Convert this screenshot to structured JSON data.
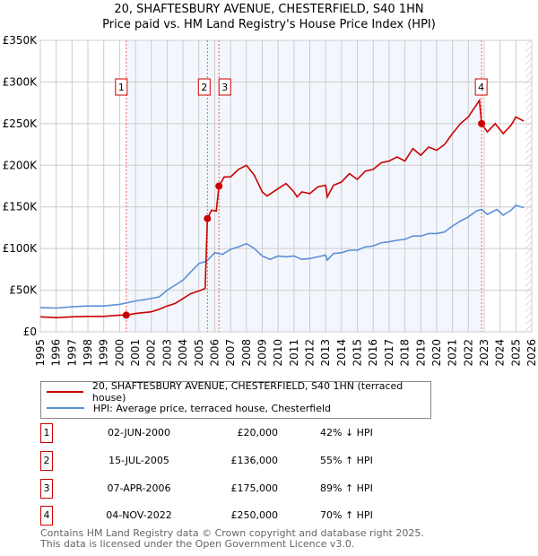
{
  "title": "20, SHAFTESBURY AVENUE, CHESTERFIELD, S40 1HN",
  "subtitle": "Price paid vs. HM Land Registry's House Price Index (HPI)",
  "legend": [
    {
      "label": "20, SHAFTESBURY AVENUE, CHESTERFIELD, S40 1HN (terraced house)",
      "color": "#cc0000"
    },
    {
      "label": "HPI: Average price, terraced house, Chesterfield",
      "color": "#5b8fd6"
    }
  ],
  "transactions": [
    {
      "num": "1",
      "date": "02-JUN-2000",
      "price": "£20,000",
      "hpi": "42% ↓ HPI"
    },
    {
      "num": "2",
      "date": "15-JUL-2005",
      "price": "£136,000",
      "hpi": "55% ↑ HPI"
    },
    {
      "num": "3",
      "date": "07-APR-2006",
      "price": "£175,000",
      "hpi": "89% ↑ HPI"
    },
    {
      "num": "4",
      "date": "04-NOV-2022",
      "price": "£250,000",
      "hpi": "70% ↑ HPI"
    }
  ],
  "footer": [
    "Contains HM Land Registry data © Crown copyright and database right 2025.",
    "This data is licensed under the Open Government Licence v3.0."
  ],
  "chart_data": {
    "type": "line",
    "title": "20, SHAFTESBURY AVENUE, CHESTERFIELD, S40 1HN",
    "subtitle": "Price paid vs. HM Land Registry's House Price Index (HPI)",
    "xlim": [
      1995,
      2026
    ],
    "ylim": [
      0,
      350000
    ],
    "yticks": [
      0,
      50000,
      100000,
      150000,
      200000,
      250000,
      300000,
      350000
    ],
    "ytick_labels": [
      "£0",
      "£50K",
      "£100K",
      "£150K",
      "£200K",
      "£250K",
      "£300K",
      "£350K"
    ],
    "xticks": [
      1995,
      1996,
      1997,
      1998,
      1999,
      2000,
      2001,
      2002,
      2003,
      2004,
      2005,
      2006,
      2007,
      2008,
      2009,
      2010,
      2011,
      2012,
      2013,
      2014,
      2015,
      2016,
      2017,
      2018,
      2019,
      2020,
      2021,
      2022,
      2023,
      2024,
      2025,
      2026
    ],
    "grid": true,
    "shaded_range": [
      2000.42,
      2022.84
    ],
    "forecast_hatch_from": 2025.6,
    "sales": [
      {
        "label": "1",
        "x": 2000.42,
        "y": 20000
      },
      {
        "label": "2",
        "x": 2005.54,
        "y": 136000
      },
      {
        "label": "3",
        "x": 2006.27,
        "y": 175000
      },
      {
        "label": "4",
        "x": 2022.84,
        "y": 250000
      }
    ],
    "series": [
      {
        "name": "20, SHAFTESBURY AVENUE, CHESTERFIELD, S40 1HN (terraced house)",
        "color": "#cc0000",
        "x": [
          1995,
          1996,
          1997,
          1998,
          1999,
          2000,
          2000.42,
          2001,
          2002,
          2002.5,
          2003,
          2003.5,
          2004,
          2004.5,
          2005,
          2005.4,
          2005.54,
          2005.8,
          2006.1,
          2006.27,
          2006.6,
          2007,
          2007.5,
          2008,
          2008.5,
          2009,
          2009.3,
          2010,
          2010.5,
          2011,
          2011.2,
          2011.5,
          2012,
          2012.5,
          2013,
          2013.1,
          2013.5,
          2014,
          2014.5,
          2015,
          2015.5,
          2016,
          2016.5,
          2017,
          2017.5,
          2018,
          2018.5,
          2019,
          2019.5,
          2020,
          2020.5,
          2021,
          2021.5,
          2022,
          2022.7,
          2022.84,
          2023.2,
          2023.7,
          2024.2,
          2024.7,
          2025,
          2025.5
        ],
        "y": [
          18000,
          17000,
          18000,
          18500,
          18500,
          20000,
          20000,
          22000,
          24000,
          27000,
          31000,
          34000,
          40000,
          46000,
          49000,
          52000,
          136000,
          146000,
          145000,
          175000,
          186000,
          186000,
          195000,
          200000,
          188000,
          168000,
          163000,
          172000,
          178000,
          168000,
          162000,
          168000,
          166000,
          174000,
          176000,
          162000,
          176000,
          180000,
          190000,
          183000,
          193000,
          195000,
          203000,
          205000,
          210000,
          205000,
          220000,
          212000,
          222000,
          218000,
          225000,
          238000,
          250000,
          258000,
          278000,
          250000,
          240000,
          250000,
          238000,
          248000,
          258000,
          253000
        ]
      },
      {
        "name": "HPI: Average price, terraced house, Chesterfield",
        "color": "#5b8fd6",
        "x": [
          1995,
          1996,
          1997,
          1998,
          1999,
          2000,
          2000.5,
          2001,
          2002,
          2002.5,
          2003,
          2004,
          2004.5,
          2005,
          2005.5,
          2006,
          2006.5,
          2007,
          2007.5,
          2008,
          2008.5,
          2009,
          2009.5,
          2010,
          2010.5,
          2011,
          2011.5,
          2012,
          2012.5,
          2013,
          2013.1,
          2013.5,
          2014,
          2014.5,
          2015,
          2015.5,
          2016,
          2016.5,
          2017,
          2017.5,
          2018,
          2018.5,
          2019,
          2019.5,
          2020,
          2020.5,
          2021,
          2021.5,
          2022,
          2022.5,
          2022.84,
          2023.2,
          2023.8,
          2024.2,
          2024.7,
          2025,
          2025.5
        ],
        "y": [
          29000,
          28500,
          30000,
          31000,
          31000,
          33000,
          35000,
          37000,
          40000,
          42000,
          50000,
          62000,
          72000,
          82000,
          85000,
          95000,
          93000,
          99000,
          102000,
          106000,
          100000,
          91000,
          87000,
          91000,
          90000,
          91000,
          87000,
          88000,
          90000,
          92000,
          86000,
          94000,
          95000,
          98000,
          98000,
          102000,
          103000,
          107000,
          108000,
          110000,
          111000,
          115000,
          115000,
          118000,
          118000,
          120000,
          127000,
          133000,
          138000,
          145000,
          147000,
          141000,
          147000,
          140000,
          146000,
          152000,
          149000
        ]
      }
    ]
  }
}
